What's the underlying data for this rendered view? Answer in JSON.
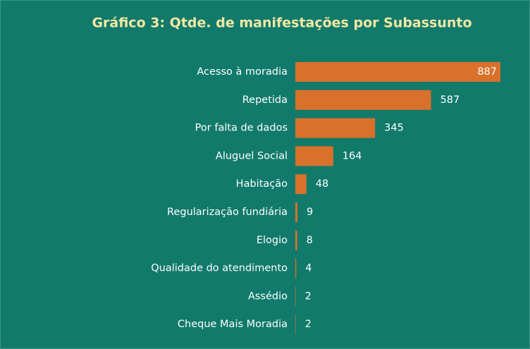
{
  "chart_data": {
    "type": "bar",
    "orientation": "horizontal",
    "title": "Gráfico 3: Qtde. de manifestações por Subassunto",
    "categories": [
      "Acesso à moradia",
      "Repetida",
      "Por falta de dados",
      "Aluguel Social",
      "Habitação",
      "Regularização fundiária",
      "Elogio",
      "Qualidade do atendimento",
      "Assédio",
      "Cheque Mais Moradia"
    ],
    "values": [
      887,
      587,
      345,
      164,
      48,
      9,
      8,
      4,
      2,
      2
    ],
    "color": "#d9712a"
  }
}
